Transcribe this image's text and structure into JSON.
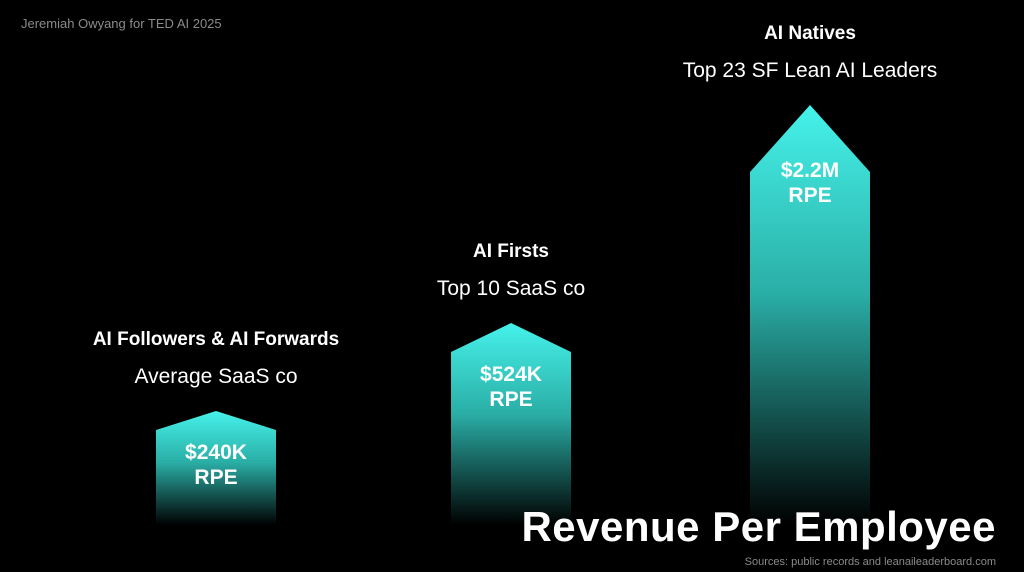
{
  "credit": "Jeremiah Owyang for TED AI 2025",
  "chart_data": {
    "type": "bar",
    "title": "Revenue Per Employee",
    "source": "Sources: public records and leanaileaderboard.com",
    "categories": [
      "AI Followers & AI Forwards",
      "AI Firsts",
      "AI Natives"
    ],
    "subtitles": [
      "Average SaaS co",
      "Top 10 SaaS co",
      "Top 23 SF Lean AI Leaders"
    ],
    "values": [
      240000,
      524000,
      2200000
    ],
    "value_labels": [
      "$240K",
      "$524K",
      "$2.2M"
    ],
    "unit_label": "RPE",
    "colors": {
      "top": "#45f2ea",
      "mid": "#2aaea6",
      "fade": "#000000"
    }
  }
}
